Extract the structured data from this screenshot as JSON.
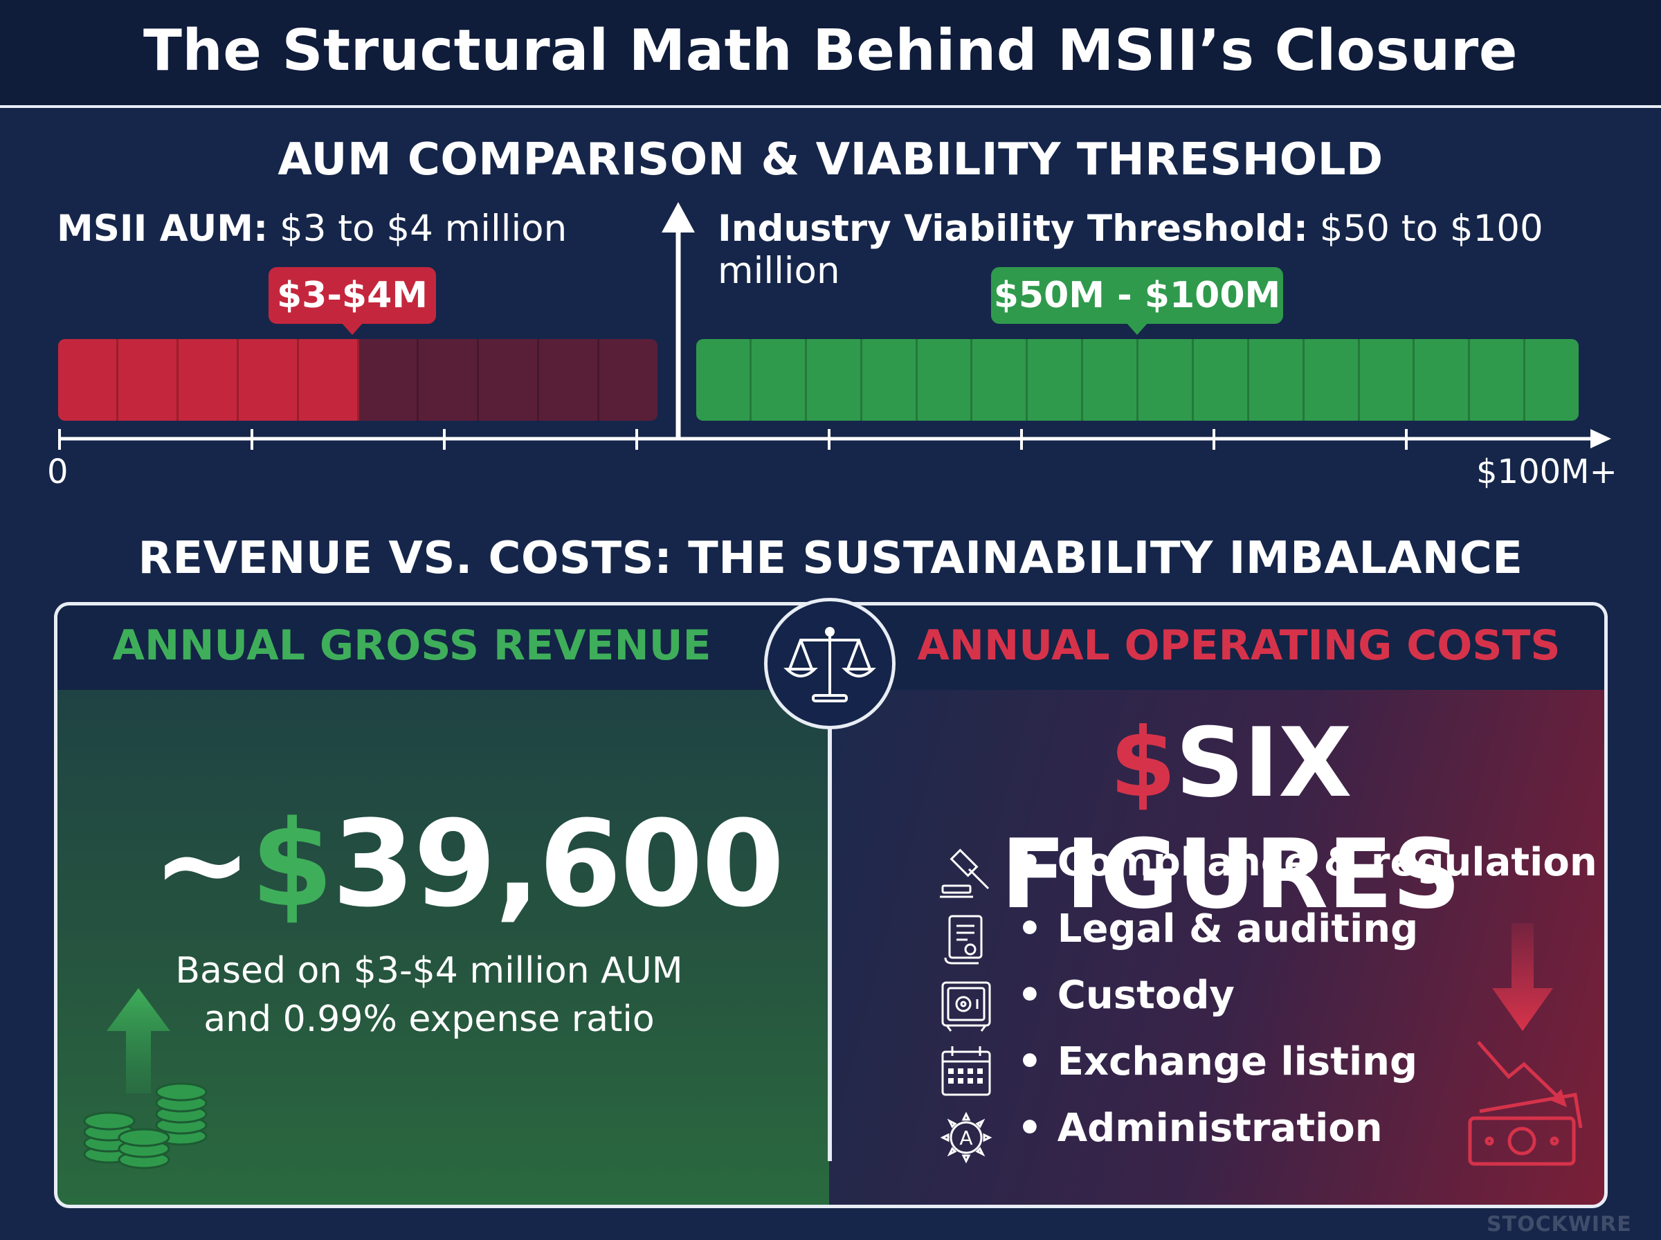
{
  "title": "The Structural Math Behind MSII’s Closure",
  "aum_section": {
    "title": "AUM COMPARISON & VIABILITY THRESHOLD",
    "msii_label_bold": "MSII AUM:",
    "msii_label_value": " $3 to $4 million",
    "industry_label_bold": "Industry Viability Threshold:",
    "industry_label_value": " $50 to $100 million",
    "msii_callout": "$3-$4M",
    "industry_callout": "$50M - $100M",
    "axis_min_label": "0",
    "axis_max_label": "$100M+"
  },
  "chart_data": {
    "type": "bar",
    "categories": [
      "MSII AUM",
      "Industry Viability Threshold"
    ],
    "series": [
      {
        "name": "MSII AUM",
        "range": [
          3,
          4
        ],
        "unit": "million USD",
        "bar_fill_fraction": 0.5,
        "segments_total": 10,
        "segments_filled": 5
      },
      {
        "name": "Industry Viability Threshold",
        "range": [
          50,
          100
        ],
        "unit": "million USD",
        "bar_fill_fraction": 1.0,
        "segments_total": 16,
        "segments_filled": 16
      }
    ],
    "colors": {
      "msii": "#c4273d",
      "msii_empty": "#5a1f38",
      "industry": "#2f9a4c"
    }
  },
  "revenue_section": {
    "title": "REVENUE VS. COSTS: THE SUSTAINABILITY IMBALANCE",
    "revenue_header": "ANNUAL GROSS REVENUE",
    "revenue_prefix": "~",
    "revenue_currency": "$",
    "revenue_amount": "39,600",
    "revenue_note_line1": "Based on $3-$4 million AUM",
    "revenue_note_line2": "and 0.99% expense ratio",
    "costs_header": "ANNUAL OPERATING COSTS",
    "costs_currency": "$",
    "costs_amount": "SIX FIGURES",
    "cost_items": [
      {
        "label": "Compliance & regulation",
        "icon": "gavel-icon"
      },
      {
        "label": "Legal & auditing",
        "icon": "document-scroll-icon"
      },
      {
        "label": "Custody",
        "icon": "safe-icon"
      },
      {
        "label": "Exchange listing",
        "icon": "calendar-icon"
      },
      {
        "label": "Administration",
        "icon": "gear-admin-icon"
      }
    ],
    "bullet": "•"
  },
  "watermark": "STOCKWIRE"
}
